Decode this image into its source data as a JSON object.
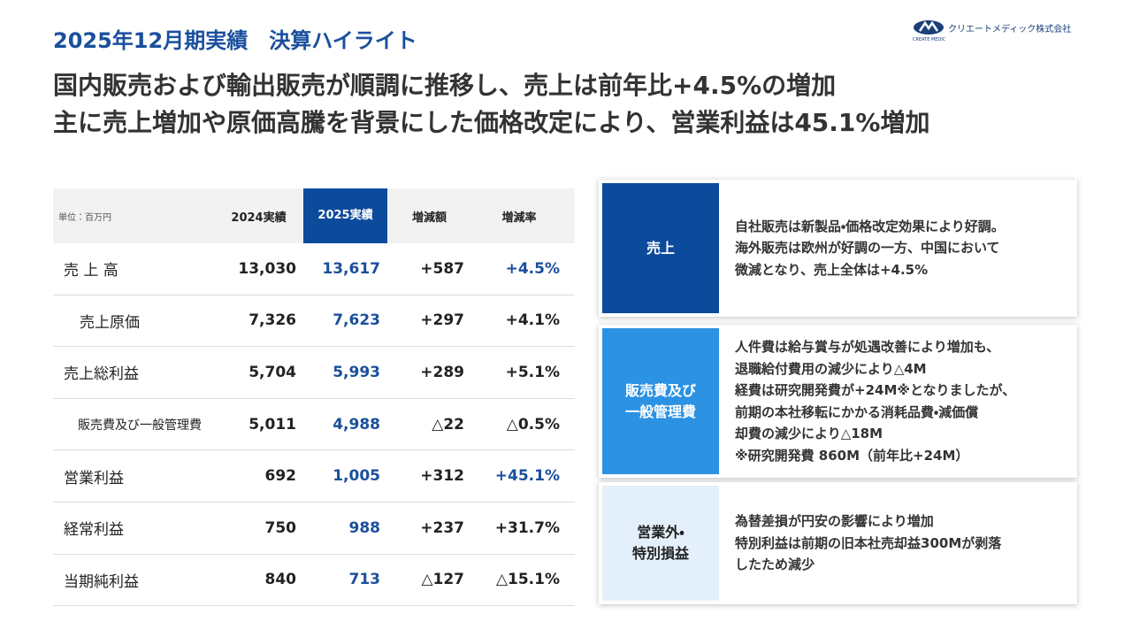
{
  "header": {
    "title": "2025年12月期実績　決算ハイライト",
    "logo_text": "クリエートメディック株式会社",
    "logo_sub": "CREATE MEDIC"
  },
  "headline": [
    "国内販売および輸出販売が順調に推移し、売上は前年比+4.5%の増加",
    "主に売上増加や原価高騰を背景にした価格改定により、営業利益は45.1%増加"
  ],
  "table": {
    "columns": [
      "単位：百万円",
      "2024実績",
      "2025実績",
      "増減額",
      "増減率"
    ],
    "rows": [
      [
        "売 上 高",
        "13,030",
        "13,617",
        "+587",
        "+4.5%"
      ],
      [
        "売上原価",
        "7,326",
        "7,623",
        "+297",
        "+4.1%"
      ],
      [
        "売上総利益",
        "5,704",
        "5,993",
        "+289",
        "+5.1%"
      ],
      [
        "販売費及び一般管理費",
        "5,011",
        "4,988",
        "△22",
        "△0.5%"
      ],
      [
        "営業利益",
        "692",
        "1,005",
        "+312",
        "+45.1%"
      ],
      [
        "経常利益",
        "750",
        "988",
        "+237",
        "+31.7%"
      ],
      [
        "当期純利益",
        "840",
        "713",
        "△127",
        "△15.1%"
      ]
    ]
  },
  "notes": [
    {
      "label": [
        "売上"
      ],
      "lines": [
        "自社販売は新製品・価格改定効果により好調。",
        "海外販売は欧州が好調の一方、中国において",
        "微減となり、売上全体は+4.5%"
      ]
    },
    {
      "label": [
        "販売費及び",
        "一般管理費"
      ],
      "lines": [
        "人件費は給与賞与が処遇改善により増加も、",
        "退職給付費用の減少により△4M",
        "経費は研究開発費が+24M※となりましたが、",
        "前期の本社移転にかかる消耗品費・減価償",
        "却費の減少により△18M",
        "※研究開発費 860M（前年比+24M）"
      ]
    },
    {
      "label": [
        "営業外・",
        "特別損益"
      ],
      "lines": [
        "為替差損が円安の影響により増加",
        "特別利益は前期の旧本社売却益300Mが剥落",
        "したため減少"
      ]
    }
  ]
}
